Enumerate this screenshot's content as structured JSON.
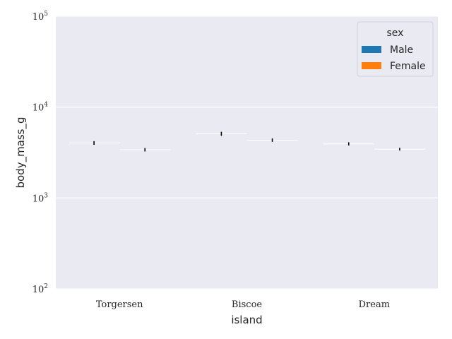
{
  "chart_data": {
    "type": "bar",
    "xlabel": "island",
    "ylabel": "body_mass_g",
    "yscale": "log",
    "ylim": [
      100,
      100000
    ],
    "yticks": [
      {
        "value": 100,
        "base": "10",
        "exp": "2"
      },
      {
        "value": 1000,
        "base": "10",
        "exp": "3"
      },
      {
        "value": 10000,
        "base": "10",
        "exp": "4"
      },
      {
        "value": 100000,
        "base": "10",
        "exp": "5"
      }
    ],
    "categories": [
      "Torgersen",
      "Biscoe",
      "Dream"
    ],
    "series": [
      {
        "name": "Male",
        "color": "#1f77b4",
        "values": [
          4035,
          5105,
          3939
        ],
        "err_low": [
          3850,
          4830,
          3780
        ],
        "err_high": [
          4220,
          5350,
          4100
        ]
      },
      {
        "name": "Female",
        "color": "#ff7f0e",
        "values": [
          3396,
          4320,
          3446
        ],
        "err_low": [
          3250,
          4150,
          3330
        ],
        "err_high": [
          3540,
          4520,
          3560
        ]
      }
    ],
    "legend": {
      "title": "sex",
      "placement": "top-right"
    },
    "grid": true,
    "background": "#eaeaf2"
  }
}
